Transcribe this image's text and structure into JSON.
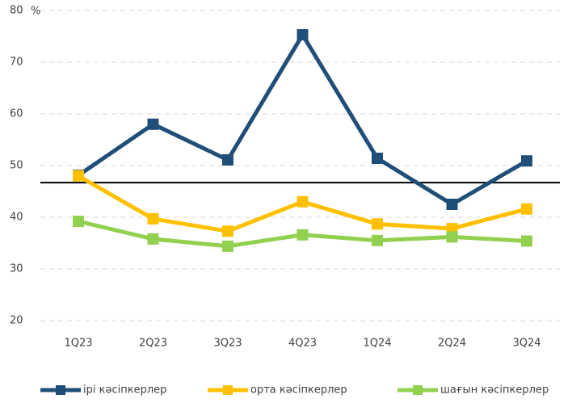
{
  "chart_data": {
    "type": "line",
    "categories": [
      "1Q23",
      "2Q23",
      "3Q23",
      "4Q23",
      "1Q24",
      "2Q24",
      "3Q24"
    ],
    "series": [
      {
        "name": "ірі кәсіпкерлер",
        "color": "#1f4e79",
        "values": [
          48.1,
          58,
          51.1,
          75.3,
          51.4,
          42.5,
          50.9
        ]
      },
      {
        "name": "орта кәсіпкерлер",
        "color": "#ffc000",
        "values": [
          48,
          39.7,
          37.3,
          43,
          38.7,
          37.8,
          41.6
        ]
      },
      {
        "name": "шағын кәсіпкерлер",
        "color": "#92d050",
        "values": [
          39.2,
          35.8,
          34.4,
          36.6,
          35.5,
          36.2,
          35.4
        ]
      }
    ],
    "y_unit": "%",
    "reference_line": 46.7,
    "ylim": [
      20,
      80
    ],
    "yticks": [
      20,
      30,
      40,
      50,
      60,
      70,
      80
    ],
    "grid": true,
    "legend": "bottom"
  }
}
